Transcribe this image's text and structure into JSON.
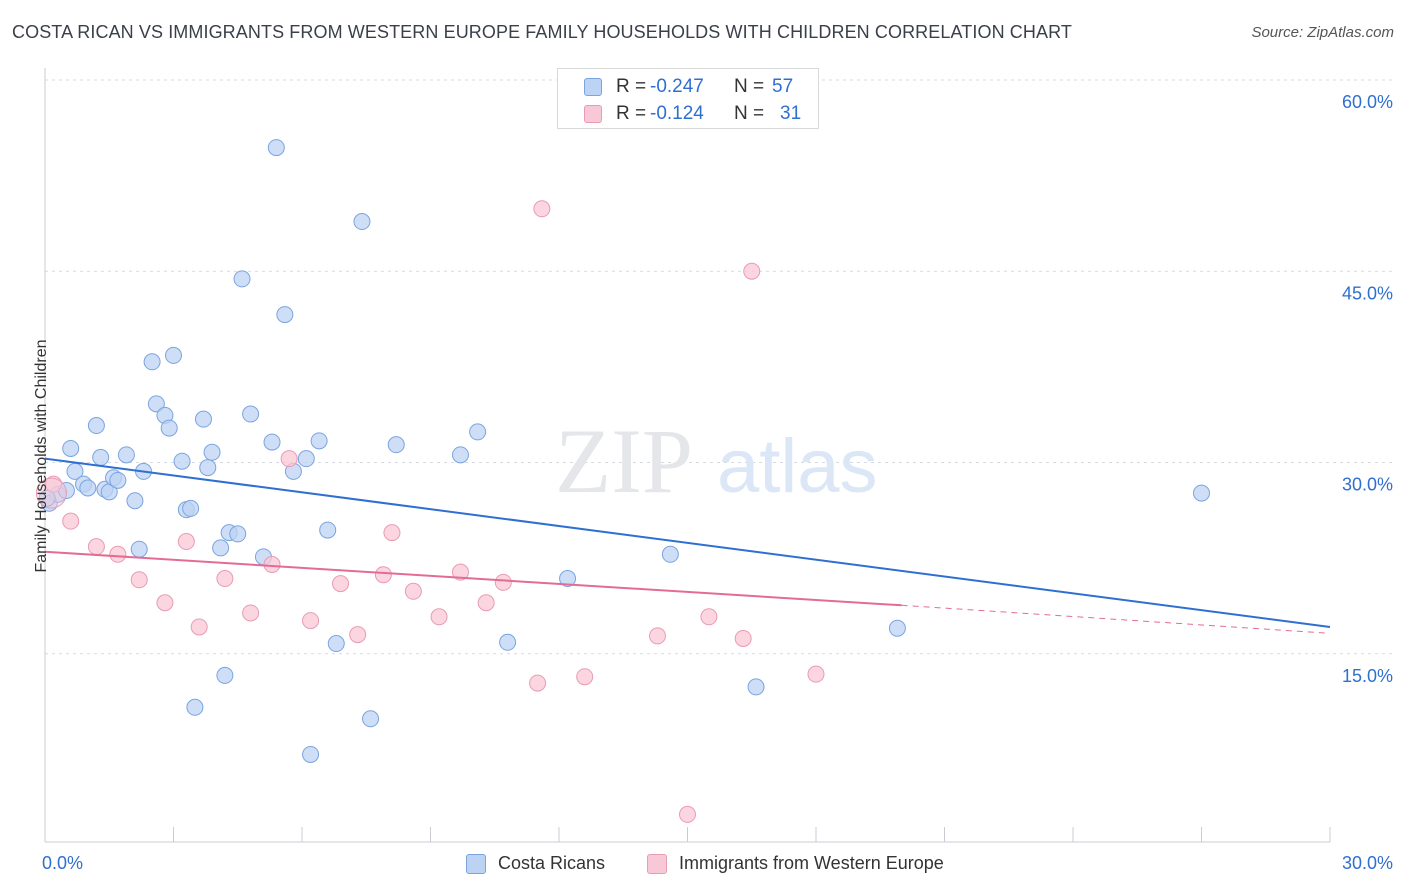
{
  "header": {
    "title": "COSTA RICAN VS IMMIGRANTS FROM WESTERN EUROPE FAMILY HOUSEHOLDS WITH CHILDREN CORRELATION CHART",
    "source": "Source: ZipAtlas.com"
  },
  "legend_top": {
    "rows": [
      {
        "r_label": "R =",
        "r_value": "-0.247",
        "n_label": "N =",
        "n_value": "57"
      },
      {
        "r_label": "R =",
        "r_value": "-0.124",
        "n_label": "N =",
        "n_value": "31"
      }
    ]
  },
  "legend_bottom": {
    "items": [
      {
        "label": "Costa Ricans"
      },
      {
        "label": "Immigrants from Western Europe"
      }
    ]
  },
  "watermark": {
    "part1": "ZIP",
    "part2": "atlas"
  },
  "colors": {
    "blue_fill": "#bcd3f3",
    "blue_stroke": "#7aa4e0",
    "blue_line": "#2f6fd1",
    "pink_fill": "#f9c8d6",
    "pink_stroke": "#e99bb3",
    "pink_line": "#e36c95",
    "grid": "#d5d9e0",
    "axis_text": "#2f6fd1"
  },
  "chart_data": {
    "type": "scatter",
    "title": "COSTA RICAN VS IMMIGRANTS FROM WESTERN EUROPE FAMILY HOUSEHOLDS WITH CHILDREN CORRELATION CHART",
    "xlabel": "",
    "ylabel": "Family Households with Children",
    "xlim": [
      0,
      30
    ],
    "ylim": [
      0,
      60
    ],
    "x_ticks": [
      0,
      30
    ],
    "x_tick_labels": [
      "0.0%",
      "30.0%"
    ],
    "y_ticks": [
      15,
      30,
      45,
      60
    ],
    "y_tick_labels": [
      "15.0%",
      "30.0%",
      "45.0%",
      "60.0%"
    ],
    "grid": true,
    "legend_position": "top-center",
    "series": [
      {
        "name": "Costa Ricans",
        "r": -0.247,
        "n": 57,
        "trend": {
          "x": [
            0,
            30
          ],
          "y": [
            30.3,
            17.1
          ]
        },
        "points": [
          [
            0.1,
            26.8
          ],
          [
            0.3,
            27.5
          ],
          [
            0.5,
            27.8
          ],
          [
            0.6,
            31.1
          ],
          [
            0.7,
            29.3
          ],
          [
            0.9,
            28.3
          ],
          [
            1.0,
            28.0
          ],
          [
            1.2,
            32.9
          ],
          [
            1.3,
            30.4
          ],
          [
            1.4,
            27.9
          ],
          [
            1.5,
            27.7
          ],
          [
            1.6,
            28.8
          ],
          [
            1.7,
            28.6
          ],
          [
            1.9,
            30.6
          ],
          [
            2.1,
            27.0
          ],
          [
            2.2,
            23.2
          ],
          [
            2.3,
            29.3
          ],
          [
            2.5,
            37.9
          ],
          [
            2.6,
            34.6
          ],
          [
            2.8,
            33.7
          ],
          [
            2.9,
            32.7
          ],
          [
            3.0,
            38.4
          ],
          [
            3.2,
            30.1
          ],
          [
            3.3,
            26.3
          ],
          [
            3.4,
            26.4
          ],
          [
            3.5,
            10.8
          ],
          [
            3.7,
            33.4
          ],
          [
            3.8,
            29.6
          ],
          [
            3.9,
            30.8
          ],
          [
            4.1,
            23.3
          ],
          [
            4.2,
            13.3
          ],
          [
            4.3,
            24.5
          ],
          [
            4.5,
            24.4
          ],
          [
            4.6,
            44.4
          ],
          [
            4.8,
            33.8
          ],
          [
            5.1,
            22.6
          ],
          [
            5.3,
            31.6
          ],
          [
            5.4,
            54.7
          ],
          [
            5.6,
            41.6
          ],
          [
            5.8,
            29.3
          ],
          [
            6.1,
            30.3
          ],
          [
            6.2,
            7.1
          ],
          [
            6.4,
            31.7
          ],
          [
            6.6,
            24.7
          ],
          [
            6.8,
            15.8
          ],
          [
            7.4,
            48.9
          ],
          [
            7.6,
            9.9
          ],
          [
            8.2,
            31.4
          ],
          [
            9.7,
            30.6
          ],
          [
            10.1,
            32.4
          ],
          [
            10.8,
            15.9
          ],
          [
            12.2,
            20.9
          ],
          [
            14.6,
            22.8
          ],
          [
            16.6,
            12.4
          ],
          [
            19.9,
            17.0
          ],
          [
            27.0,
            27.6
          ],
          [
            0.05,
            27.2
          ]
        ]
      },
      {
        "name": "Immigrants from Western Europe",
        "r": -0.124,
        "n": 31,
        "trend": {
          "x": [
            0,
            20
          ],
          "y": [
            23.0,
            18.8
          ]
        },
        "trend_dashed": {
          "x": [
            20,
            30
          ],
          "y": [
            18.8,
            16.6
          ]
        },
        "points": [
          [
            0.2,
            28.3
          ],
          [
            0.6,
            25.4
          ],
          [
            1.2,
            23.4
          ],
          [
            1.7,
            22.8
          ],
          [
            2.2,
            20.8
          ],
          [
            2.8,
            19.0
          ],
          [
            3.3,
            23.8
          ],
          [
            3.6,
            17.1
          ],
          [
            4.2,
            20.9
          ],
          [
            4.8,
            18.2
          ],
          [
            5.3,
            22.0
          ],
          [
            5.7,
            30.3
          ],
          [
            6.2,
            17.6
          ],
          [
            6.9,
            20.5
          ],
          [
            7.3,
            16.5
          ],
          [
            7.9,
            21.2
          ],
          [
            8.1,
            24.5
          ],
          [
            8.6,
            19.9
          ],
          [
            9.2,
            17.9
          ],
          [
            9.7,
            21.4
          ],
          [
            10.3,
            19.0
          ],
          [
            10.7,
            20.6
          ],
          [
            11.5,
            12.7
          ],
          [
            11.6,
            49.9
          ],
          [
            12.6,
            13.2
          ],
          [
            14.3,
            16.4
          ],
          [
            15.5,
            17.9
          ],
          [
            16.3,
            16.2
          ],
          [
            16.5,
            45.0
          ],
          [
            18.0,
            13.4
          ],
          [
            15.0,
            2.4
          ]
        ]
      }
    ]
  }
}
